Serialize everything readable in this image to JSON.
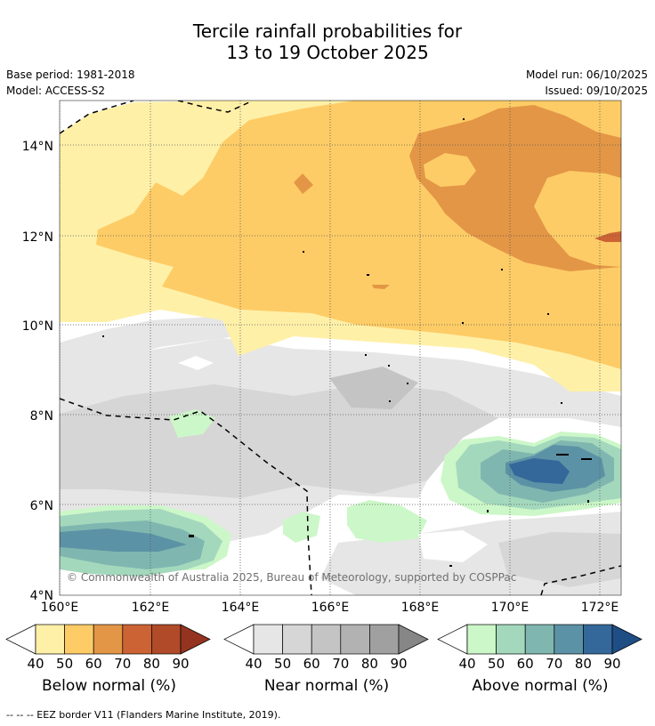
{
  "title": {
    "line1": "Tercile rainfall probabilities for",
    "line2": "13 to 19 October 2025"
  },
  "info": {
    "base_period": "Base period: 1981-2018",
    "model": "Model: ACCESS-S2",
    "model_run": "Model run: 06/10/2025",
    "issued": "Issued: 09/10/2025"
  },
  "map": {
    "lon_labels": [
      "160°E",
      "162°E",
      "164°E",
      "166°E",
      "168°E",
      "170°E",
      "172°E"
    ],
    "lat_labels": [
      "14°N",
      "12°N",
      "10°N",
      "8°N",
      "6°N",
      "4°N"
    ],
    "copyright": "© Commonwealth of Australia 2025, Bureau of Meteorology, supported by COSPPac"
  },
  "legend": {
    "ticks": [
      "40",
      "50",
      "60",
      "70",
      "80",
      "90"
    ],
    "below": {
      "label": "Below normal (%)",
      "colors": [
        "#fff0a8",
        "#fdcc66",
        "#e39646",
        "#cc6334",
        "#b04a28",
        "#943320"
      ]
    },
    "near": {
      "label": "Near normal (%)",
      "colors": [
        "#e6e6e6",
        "#d6d6d6",
        "#c4c4c4",
        "#b2b2b2",
        "#a0a0a0",
        "#868686"
      ]
    },
    "above": {
      "label": "Above normal (%)",
      "colors": [
        "#ccf7c8",
        "#a3d8bd",
        "#7fb7b0",
        "#5c92a5",
        "#34689a",
        "#1f4e85"
      ]
    }
  },
  "footer": "--  --  -- EEZ border V11 (Flanders Marine Institute, 2019)."
}
